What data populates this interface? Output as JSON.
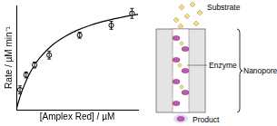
{
  "chart_data": {
    "type": "scatter",
    "x_label": "[Amplex Red] / µM",
    "y_label": "Rate / µM min⁻¹",
    "xlim": [
      0,
      100
    ],
    "ylim": [
      0,
      105
    ],
    "tick_labels": false,
    "grid": false,
    "series": [
      {
        "type": "scatter",
        "marker": "circle",
        "color": "#000000",
        "x": [
          3,
          8,
          15,
          27,
          52,
          78,
          95
        ],
        "values": [
          20,
          35,
          45,
          55,
          75,
          85,
          97
        ],
        "errors": [
          4,
          3,
          3,
          4,
          3,
          4,
          5
        ]
      },
      {
        "type": "line",
        "line_style": "solid",
        "color": "#000000",
        "x": [
          0,
          2,
          5,
          10,
          15,
          20,
          30,
          40,
          50,
          60,
          70,
          80,
          90,
          100
        ],
        "values": [
          0,
          8.9,
          20,
          34.3,
          45,
          53.3,
          65.5,
          73.8,
          80,
          84.7,
          88.4,
          91.4,
          93.9,
          96
        ]
      }
    ]
  },
  "diagram": {
    "substrate": "Substrate",
    "enzyme": "Enzyme",
    "nanopore": "Nanopore",
    "product": "Product"
  }
}
